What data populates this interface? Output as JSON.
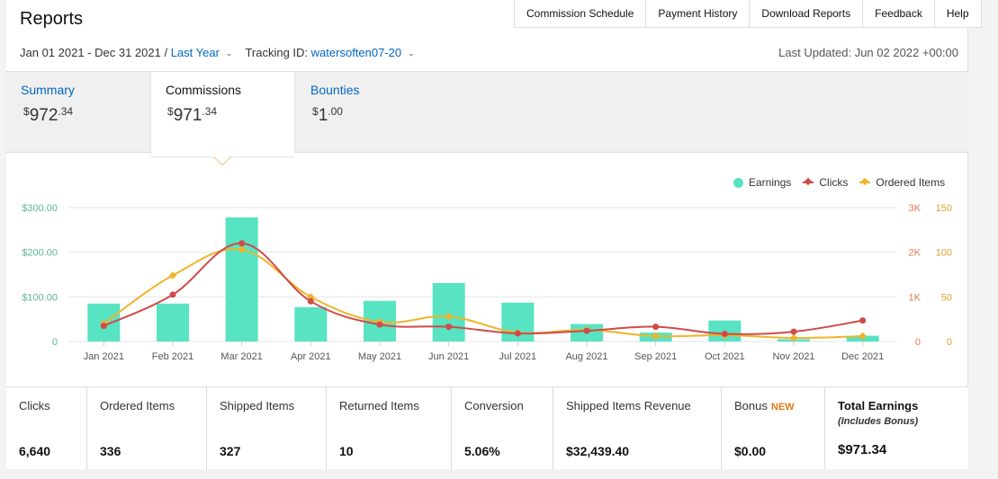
{
  "page": {
    "title": "Reports"
  },
  "topnav": [
    {
      "label": "Commission Schedule"
    },
    {
      "label": "Payment History"
    },
    {
      "label": "Download Reports"
    },
    {
      "label": "Feedback"
    },
    {
      "label": "Help"
    }
  ],
  "filters": {
    "date_range": "Jan 01 2021 - Dec 31 2021 /",
    "period": "Last Year",
    "tracking_label": "Tracking ID:",
    "tracking_id": "watersoften07-20"
  },
  "last_updated": "Last Updated: Jun 02 2022 +00:00",
  "summary_tabs": [
    {
      "label": "Summary",
      "currency": "$",
      "whole": "972",
      "cents": ".34"
    },
    {
      "label": "Commissions",
      "currency": "$",
      "whole": "971",
      "cents": ".34",
      "active": true
    },
    {
      "label": "Bounties",
      "currency": "$",
      "whole": "1",
      "cents": ".00"
    }
  ],
  "colors": {
    "earnings": "#58e3c2",
    "clicks": "#d04a4a",
    "ordered_items": "#f0b429",
    "link": "#0066c0",
    "new_badge": "#e47911"
  },
  "chart_data": {
    "type": "bar",
    "categories": [
      "Jan 2021",
      "Feb 2021",
      "Mar 2021",
      "Apr 2021",
      "May 2021",
      "Jun 2021",
      "Jul 2021",
      "Aug 2021",
      "Sep 2021",
      "Oct 2021",
      "Nov 2021",
      "Dec 2021"
    ],
    "legend": [
      "Earnings",
      "Clicks",
      "Ordered Items"
    ],
    "legend_position": "top-right",
    "series": [
      {
        "name": "Earnings",
        "kind": "bar",
        "axis": "left",
        "values": [
          85,
          85,
          278,
          77,
          91,
          131,
          87,
          39,
          20,
          47,
          5,
          13
        ]
      },
      {
        "name": "Clicks",
        "kind": "line",
        "axis": "right-outer",
        "values": [
          350,
          1050,
          2200,
          900,
          380,
          330,
          180,
          240,
          330,
          170,
          220,
          470
        ]
      },
      {
        "name": "Ordered Items",
        "kind": "line",
        "axis": "right-inner",
        "values": [
          20,
          74,
          103,
          50,
          22,
          28,
          10,
          13,
          6,
          7,
          4,
          6
        ]
      }
    ],
    "y_left": {
      "ticks": [
        "$300.00",
        "$200.00",
        "$100.00",
        "0"
      ],
      "range": [
        0,
        300
      ]
    },
    "y_right_outer": {
      "ticks": [
        "3K",
        "2K",
        "1K",
        "0"
      ],
      "range": [
        0,
        3000
      ]
    },
    "y_right_inner": {
      "ticks": [
        "150",
        "100",
        "50",
        "0"
      ],
      "range": [
        0,
        150
      ]
    },
    "grid": true
  },
  "metrics": [
    {
      "label": "Clicks",
      "value": "6,640"
    },
    {
      "label": "Ordered Items",
      "value": "336"
    },
    {
      "label": "Shipped Items",
      "value": "327"
    },
    {
      "label": "Returned Items",
      "value": "10"
    },
    {
      "label": "Conversion",
      "value": "5.06%"
    },
    {
      "label": "Shipped Items Revenue",
      "value": "$32,439.40"
    },
    {
      "label": "Bonus",
      "badge": "NEW",
      "value": "$0.00"
    },
    {
      "label": "Total Earnings",
      "sub": "(Includes Bonus)",
      "value": "$971.34"
    }
  ]
}
